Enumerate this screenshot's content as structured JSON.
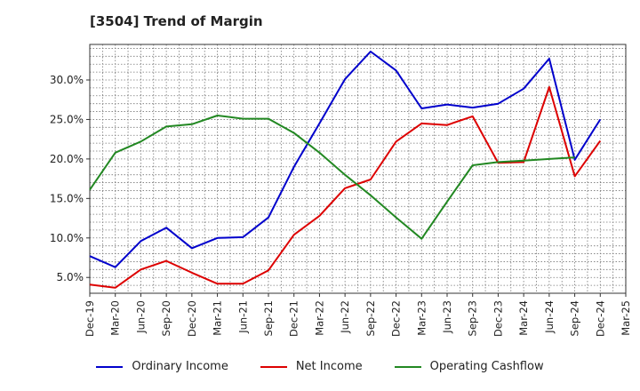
{
  "chart_data": {
    "type": "line",
    "title": "[3504]  Trend of Margin",
    "x": [
      "Dec-19",
      "Mar-20",
      "Jun-20",
      "Sep-20",
      "Dec-20",
      "Mar-21",
      "Jun-21",
      "Sep-21",
      "Dec-21",
      "Mar-22",
      "Jun-22",
      "Sep-22",
      "Dec-22",
      "Mar-23",
      "Jun-23",
      "Sep-23",
      "Dec-23",
      "Mar-24",
      "Jun-24",
      "Sep-24",
      "Dec-24",
      "Mar-25"
    ],
    "ylim": [
      3.0,
      34.5
    ],
    "yticks": [
      5.0,
      10.0,
      15.0,
      20.0,
      25.0,
      30.0
    ],
    "ytick_labels": [
      "5.0%",
      "10.0%",
      "15.0%",
      "20.0%",
      "25.0%",
      "30.0%"
    ],
    "grid": true,
    "legend_position": "bottom",
    "series": [
      {
        "name": "Ordinary Income",
        "color": "#0000cc",
        "values": [
          7.7,
          6.3,
          9.6,
          11.3,
          8.7,
          10.0,
          10.1,
          12.6,
          19.0,
          24.5,
          30.1,
          33.6,
          31.2,
          26.4,
          26.9,
          26.5,
          27.0,
          28.9,
          32.7,
          19.9,
          25.0,
          null
        ]
      },
      {
        "name": "Net Income",
        "color": "#dd0000",
        "values": [
          4.1,
          3.7,
          6.0,
          7.1,
          5.6,
          4.2,
          4.2,
          5.9,
          10.4,
          12.8,
          16.3,
          17.4,
          22.2,
          24.5,
          24.3,
          25.4,
          19.5,
          19.6,
          29.1,
          17.8,
          22.3,
          null
        ]
      },
      {
        "name": "Operating Cashflow",
        "color": "#228822",
        "values": [
          16.1,
          20.8,
          22.2,
          24.1,
          24.4,
          25.5,
          25.1,
          25.1,
          23.3,
          20.8,
          18.0,
          15.4,
          12.6,
          9.9,
          14.6,
          19.2,
          19.6,
          19.8,
          20.0,
          20.2,
          null,
          null
        ]
      }
    ]
  }
}
